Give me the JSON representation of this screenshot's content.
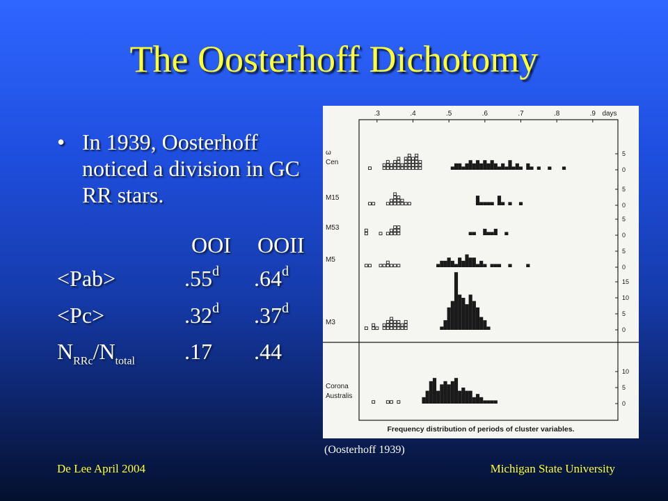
{
  "slide": {
    "title": "The Oosterhoff Dichotomy",
    "bullet": "In 1939, Oosterhoff noticed a division in GC RR stars.",
    "bullet_marker": "•",
    "table": {
      "col1": "OOI",
      "col2": "OOII",
      "rows": [
        {
          "label": "<Pab>",
          "v1": ".55",
          "v1_sup": "d",
          "v2": ".64",
          "v2_sup": "d"
        },
        {
          "label": "<Pc>",
          "v1": ".32",
          "v1_sup": "d",
          "v2": ".37",
          "v2_sup": "d"
        }
      ],
      "ratio": {
        "n": "N",
        "sub1": "RRc",
        "slash": "/N",
        "sub2": "total",
        "v1": ".17",
        "v2": ".44"
      }
    },
    "caption": "(Oosterhoff 1939)",
    "footer_left": "De Lee April 2004",
    "footer_right": "Michigan State University",
    "colors": {
      "title": "#ffff33",
      "text": "#ffffff",
      "footer": "#ffff33"
    }
  },
  "chart_data": {
    "type": "bar",
    "title": "Frequency distribution of periods of cluster variables.",
    "xlabel": "days",
    "x_ticks": [
      ".3",
      ".4",
      ".5",
      ".6",
      ".7",
      ".8",
      ".9"
    ],
    "xlim": [
      0.25,
      0.97
    ],
    "bin_width": 0.01,
    "panels": [
      {
        "name": "ω Cen",
        "ylim": [
          0,
          8
        ],
        "y_ticks": [
          "5",
          "0"
        ],
        "open": [
          [
            0.28,
            1
          ],
          [
            0.32,
            2
          ],
          [
            0.33,
            3
          ],
          [
            0.34,
            2
          ],
          [
            0.35,
            3
          ],
          [
            0.36,
            4
          ],
          [
            0.37,
            2
          ],
          [
            0.38,
            4
          ],
          [
            0.39,
            5
          ],
          [
            0.4,
            4
          ],
          [
            0.41,
            5
          ],
          [
            0.42,
            3
          ]
        ],
        "filled": [
          [
            0.51,
            1
          ],
          [
            0.52,
            2
          ],
          [
            0.53,
            2
          ],
          [
            0.54,
            1
          ],
          [
            0.55,
            2
          ],
          [
            0.56,
            3
          ],
          [
            0.57,
            2
          ],
          [
            0.58,
            3
          ],
          [
            0.59,
            2
          ],
          [
            0.6,
            3
          ],
          [
            0.61,
            2
          ],
          [
            0.62,
            3
          ],
          [
            0.63,
            2
          ],
          [
            0.64,
            1
          ],
          [
            0.65,
            2
          ],
          [
            0.66,
            1
          ],
          [
            0.67,
            3
          ],
          [
            0.68,
            1
          ],
          [
            0.69,
            2
          ],
          [
            0.7,
            1
          ],
          [
            0.72,
            2
          ],
          [
            0.73,
            1
          ],
          [
            0.75,
            1
          ],
          [
            0.78,
            1
          ],
          [
            0.82,
            1
          ]
        ]
      },
      {
        "name": "M15",
        "ylim": [
          0,
          8
        ],
        "y_ticks": [
          "5",
          "0"
        ],
        "open": [
          [
            0.28,
            1
          ],
          [
            0.29,
            1
          ],
          [
            0.33,
            1
          ],
          [
            0.34,
            2
          ],
          [
            0.35,
            4
          ],
          [
            0.36,
            3
          ],
          [
            0.37,
            2
          ],
          [
            0.38,
            1
          ],
          [
            0.39,
            1
          ]
        ],
        "filled": [
          [
            0.58,
            3
          ],
          [
            0.59,
            1
          ],
          [
            0.6,
            1
          ],
          [
            0.61,
            1
          ],
          [
            0.62,
            1
          ],
          [
            0.64,
            3
          ],
          [
            0.65,
            1
          ],
          [
            0.67,
            1
          ],
          [
            0.7,
            1
          ]
        ]
      },
      {
        "name": "M53",
        "ylim": [
          0,
          5
        ],
        "y_ticks": [
          "5",
          "0"
        ],
        "open": [
          [
            0.27,
            2
          ],
          [
            0.31,
            1
          ],
          [
            0.33,
            1
          ],
          [
            0.34,
            2
          ],
          [
            0.35,
            3
          ],
          [
            0.36,
            3
          ]
        ],
        "filled": [
          [
            0.56,
            1
          ],
          [
            0.57,
            1
          ],
          [
            0.6,
            2
          ],
          [
            0.61,
            1
          ],
          [
            0.62,
            1
          ],
          [
            0.63,
            2
          ],
          [
            0.66,
            1
          ]
        ]
      },
      {
        "name": "M5",
        "ylim": [
          0,
          8
        ],
        "y_ticks": [
          "5",
          "0"
        ],
        "open": [
          [
            0.27,
            1
          ],
          [
            0.28,
            1
          ],
          [
            0.31,
            1
          ],
          [
            0.32,
            1
          ],
          [
            0.33,
            2
          ],
          [
            0.34,
            1
          ],
          [
            0.35,
            1
          ],
          [
            0.36,
            1
          ]
        ],
        "filled": [
          [
            0.47,
            1
          ],
          [
            0.48,
            2
          ],
          [
            0.49,
            2
          ],
          [
            0.5,
            3
          ],
          [
            0.51,
            2
          ],
          [
            0.52,
            1
          ],
          [
            0.53,
            3
          ],
          [
            0.54,
            2
          ],
          [
            0.55,
            4
          ],
          [
            0.56,
            3
          ],
          [
            0.57,
            3
          ],
          [
            0.58,
            1
          ],
          [
            0.59,
            2
          ],
          [
            0.6,
            1
          ],
          [
            0.62,
            1
          ],
          [
            0.63,
            1
          ],
          [
            0.64,
            1
          ],
          [
            0.67,
            1
          ],
          [
            0.72,
            1
          ]
        ]
      },
      {
        "name": "M3",
        "ylim": [
          0,
          20
        ],
        "y_ticks": [
          "15",
          "10",
          "5",
          "0"
        ],
        "open": [
          [
            0.27,
            1
          ],
          [
            0.29,
            2
          ],
          [
            0.3,
            1
          ],
          [
            0.32,
            2
          ],
          [
            0.33,
            3
          ],
          [
            0.34,
            4
          ],
          [
            0.35,
            3
          ],
          [
            0.36,
            3
          ],
          [
            0.37,
            2
          ],
          [
            0.38,
            3
          ]
        ],
        "filled": [
          [
            0.48,
            1
          ],
          [
            0.49,
            3
          ],
          [
            0.5,
            7
          ],
          [
            0.51,
            9
          ],
          [
            0.52,
            18
          ],
          [
            0.53,
            11
          ],
          [
            0.54,
            10
          ],
          [
            0.55,
            8
          ],
          [
            0.56,
            11
          ],
          [
            0.57,
            9
          ],
          [
            0.58,
            7
          ],
          [
            0.59,
            4
          ],
          [
            0.6,
            3
          ],
          [
            0.61,
            1
          ]
        ]
      },
      {
        "name": "Corona Australis",
        "ylim": [
          0,
          13
        ],
        "y_ticks": [
          "10",
          "5",
          "0"
        ],
        "open": [
          [
            0.29,
            1
          ],
          [
            0.33,
            1
          ],
          [
            0.34,
            1
          ],
          [
            0.36,
            1
          ]
        ],
        "filled": [
          [
            0.43,
            2
          ],
          [
            0.44,
            4
          ],
          [
            0.45,
            7
          ],
          [
            0.46,
            8
          ],
          [
            0.47,
            4
          ],
          [
            0.48,
            6
          ],
          [
            0.49,
            7
          ],
          [
            0.5,
            6
          ],
          [
            0.51,
            7
          ],
          [
            0.52,
            8
          ],
          [
            0.53,
            4
          ],
          [
            0.54,
            5
          ],
          [
            0.55,
            4
          ],
          [
            0.56,
            4
          ],
          [
            0.57,
            2
          ],
          [
            0.58,
            3
          ],
          [
            0.59,
            2
          ],
          [
            0.6,
            1
          ],
          [
            0.61,
            1
          ],
          [
            0.62,
            1
          ],
          [
            0.63,
            1
          ]
        ]
      }
    ]
  }
}
